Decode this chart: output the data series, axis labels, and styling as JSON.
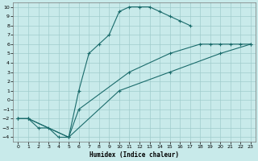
{
  "title": "",
  "xlabel": "Humidex (Indice chaleur)",
  "bg_color": "#c8eaea",
  "grid_color": "#a0cccc",
  "line_color": "#1a6b6b",
  "xlim": [
    -0.5,
    23.5
  ],
  "ylim": [
    -4.5,
    10.5
  ],
  "xticks": [
    0,
    1,
    2,
    3,
    4,
    5,
    6,
    7,
    8,
    9,
    10,
    11,
    12,
    13,
    14,
    15,
    16,
    17,
    18,
    19,
    20,
    21,
    22,
    23
  ],
  "yticks": [
    -4,
    -3,
    -2,
    -1,
    0,
    1,
    2,
    3,
    4,
    5,
    6,
    7,
    8,
    9,
    10
  ],
  "line1_x": [
    0,
    1,
    2,
    3,
    4,
    5,
    6,
    7,
    8,
    9,
    10,
    11,
    12,
    13,
    14,
    15,
    16,
    17
  ],
  "line1_y": [
    -2,
    -2,
    -3,
    -3,
    -4,
    -4,
    1,
    5,
    6,
    7,
    9.5,
    10,
    10,
    10,
    9.5,
    9,
    8.5,
    8
  ],
  "line2_x": [
    0,
    1,
    5,
    6,
    11,
    15,
    18,
    19,
    20,
    21,
    22,
    23
  ],
  "line2_y": [
    -2,
    -2,
    -4,
    -1,
    3,
    5,
    6,
    6,
    6,
    6,
    6,
    6
  ],
  "line3_x": [
    0,
    1,
    5,
    10,
    15,
    20,
    23
  ],
  "line3_y": [
    -2,
    -2,
    -4,
    1,
    3,
    5,
    6
  ]
}
